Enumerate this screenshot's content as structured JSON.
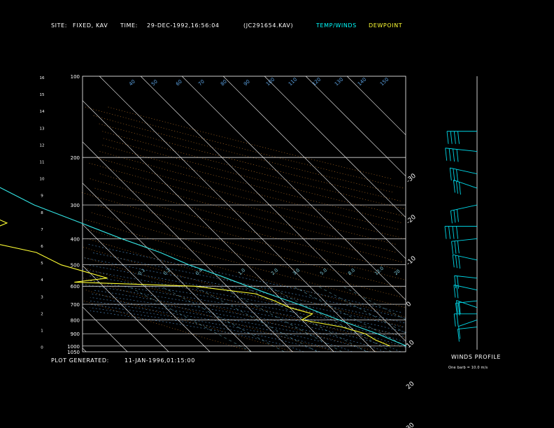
{
  "header": {
    "site_label": "SITE:",
    "site_value": "FIXED, KAV",
    "time_label": "TIME:",
    "time_value": "29-DEC-1992,16:56:04",
    "file_id": "(JC291654.KAV)",
    "legend_temp": "TEMP/WINDS",
    "legend_dew": "DEWPOINT"
  },
  "footer": {
    "plot_generated_label": "PLOT GENERATED:",
    "plot_generated_value": "11-JAN-1996,01:15:00",
    "winds_title": "WINDS PROFILE",
    "barb_note": "One barb = 10.0 m/s"
  },
  "colors": {
    "temperature": "#33e6e6",
    "dewpoint": "#ffff33",
    "isotherm": "#ffffff",
    "isobar": "#ffffff",
    "dry_adiabat": "#e08a2c",
    "moist_adiabat": "#5aa0e0",
    "mixing_ratio": "#7fd0e0",
    "winds": "#00d8e8"
  },
  "chart_data": {
    "type": "line",
    "title": "",
    "xlabel": "",
    "ylabel": "",
    "pressure_ticks": [
      "100",
      "200",
      "300",
      "400",
      "500",
      "600",
      "700",
      "800",
      "900",
      "1000",
      "1050"
    ],
    "height_ticks": [
      "16",
      "15",
      "14",
      "13",
      "12",
      "11",
      "10",
      "9",
      "8",
      "7",
      "6",
      "5",
      "4",
      "3",
      "2",
      "1",
      "0"
    ],
    "top_temp_ticks": [
      "-110",
      "-100",
      "-90",
      "-80",
      "-70",
      "-60",
      "-50",
      "-40"
    ],
    "right_temp_ticks": [
      "-30",
      "-20",
      "-10",
      "0",
      "10",
      "20",
      "30"
    ],
    "theta_ticks": [
      "40",
      "50",
      "60",
      "70",
      "80",
      "90",
      "100",
      "110",
      "120",
      "130",
      "140",
      "150"
    ],
    "mixing_ratio_ticks": [
      "0.1",
      "0.2",
      "0.4",
      "1.0",
      "2.0",
      "3.0",
      "5.0",
      "8.0",
      "12.0",
      "20"
    ],
    "series": [
      {
        "name": "TEMP/WINDS",
        "points": [
          [
            100,
            -58
          ],
          [
            130,
            -56
          ],
          [
            160,
            -57
          ],
          [
            200,
            -55
          ],
          [
            250,
            -52
          ],
          [
            300,
            -47
          ],
          [
            350,
            -40
          ],
          [
            400,
            -34
          ],
          [
            450,
            -28
          ],
          [
            500,
            -24
          ],
          [
            550,
            -19
          ],
          [
            600,
            -15
          ],
          [
            650,
            -11
          ],
          [
            700,
            -7
          ],
          [
            750,
            -4
          ],
          [
            800,
            -1
          ],
          [
            850,
            2
          ],
          [
            900,
            5
          ],
          [
            950,
            7
          ],
          [
            1000,
            9
          ]
        ]
      },
      {
        "name": "DEWPOINT",
        "points": [
          [
            100,
            -84
          ],
          [
            130,
            -83
          ],
          [
            160,
            -81
          ],
          [
            180,
            -82
          ],
          [
            200,
            -80
          ],
          [
            230,
            -78
          ],
          [
            260,
            -72
          ],
          [
            300,
            -78
          ],
          [
            330,
            -60
          ],
          [
            350,
            -58
          ],
          [
            380,
            -66
          ],
          [
            420,
            -65
          ],
          [
            450,
            -58
          ],
          [
            500,
            -55
          ],
          [
            560,
            -47
          ],
          [
            580,
            -56
          ],
          [
            600,
            -28
          ],
          [
            640,
            -15
          ],
          [
            680,
            -12
          ],
          [
            720,
            -10
          ],
          [
            760,
            -6
          ],
          [
            800,
            -10
          ],
          [
            850,
            -2
          ],
          [
            900,
            2
          ],
          [
            950,
            3
          ],
          [
            1000,
            5
          ]
        ]
      }
    ],
    "winds": [
      {
        "p": 160,
        "dir": 270,
        "spd": 35
      },
      {
        "p": 190,
        "dir": 280,
        "spd": 40
      },
      {
        "p": 230,
        "dir": 290,
        "spd": 32
      },
      {
        "p": 260,
        "dir": 300,
        "spd": 28
      },
      {
        "p": 300,
        "dir": 250,
        "spd": 30
      },
      {
        "p": 360,
        "dir": 270,
        "spd": 40
      },
      {
        "p": 400,
        "dir": 260,
        "spd": 25
      },
      {
        "p": 480,
        "dir": 290,
        "spd": 25
      },
      {
        "p": 560,
        "dir": 280,
        "spd": 18
      },
      {
        "p": 620,
        "dir": 290,
        "spd": 22
      },
      {
        "p": 680,
        "dir": 260,
        "spd": 15
      },
      {
        "p": 720,
        "dir": 300,
        "spd": 20
      },
      {
        "p": 760,
        "dir": 270,
        "spd": 18
      },
      {
        "p": 800,
        "dir": 240,
        "spd": 14
      },
      {
        "p": 850,
        "dir": 260,
        "spd": 10
      }
    ]
  }
}
